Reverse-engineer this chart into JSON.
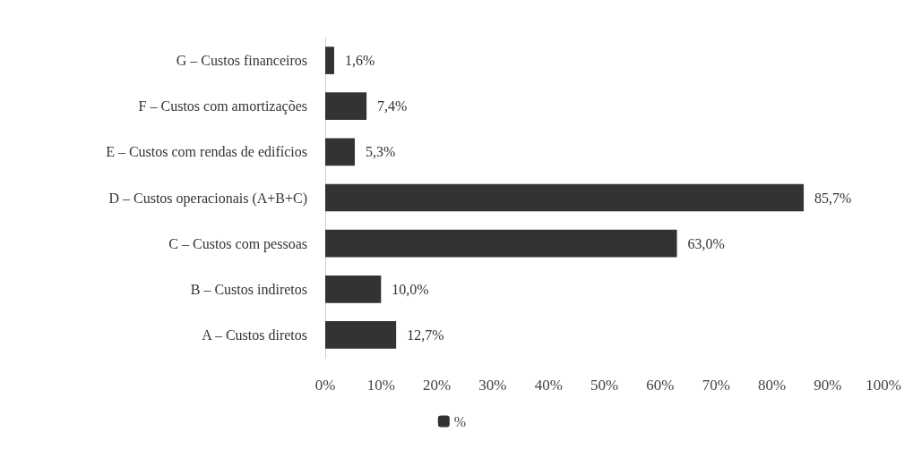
{
  "chart_data": {
    "type": "bar",
    "orientation": "horizontal",
    "categories": [
      "G – Custos financeiros",
      "F – Custos com amortizações",
      "E – Custos com rendas de edifícios",
      "D – Custos operacionais (A+B+C)",
      "C – Custos com pessoas",
      "B – Custos indiretos",
      "A – Custos diretos"
    ],
    "series": [
      {
        "name": "%",
        "color": "#333333",
        "values": [
          1.6,
          7.4,
          5.3,
          85.7,
          63.0,
          10.0,
          12.7
        ],
        "value_labels": [
          "1,6%",
          "7,4%",
          "5,3%",
          "85,7%",
          "63,0%",
          "10,0%",
          "12,7%"
        ]
      }
    ],
    "xlim": [
      0,
      100
    ],
    "xticks": [
      {
        "value": 0,
        "label": "0%"
      },
      {
        "value": 10,
        "label": "10%"
      },
      {
        "value": 20,
        "label": "20%"
      },
      {
        "value": 30,
        "label": "30%"
      },
      {
        "value": 40,
        "label": "40%"
      },
      {
        "value": 50,
        "label": "50%"
      },
      {
        "value": 60,
        "label": "60%"
      },
      {
        "value": 70,
        "label": "70%"
      },
      {
        "value": 80,
        "label": "80%"
      },
      {
        "value": 90,
        "label": "90%"
      },
      {
        "value": 100,
        "label": "100%"
      }
    ],
    "grid": false,
    "legend": "bottom"
  }
}
